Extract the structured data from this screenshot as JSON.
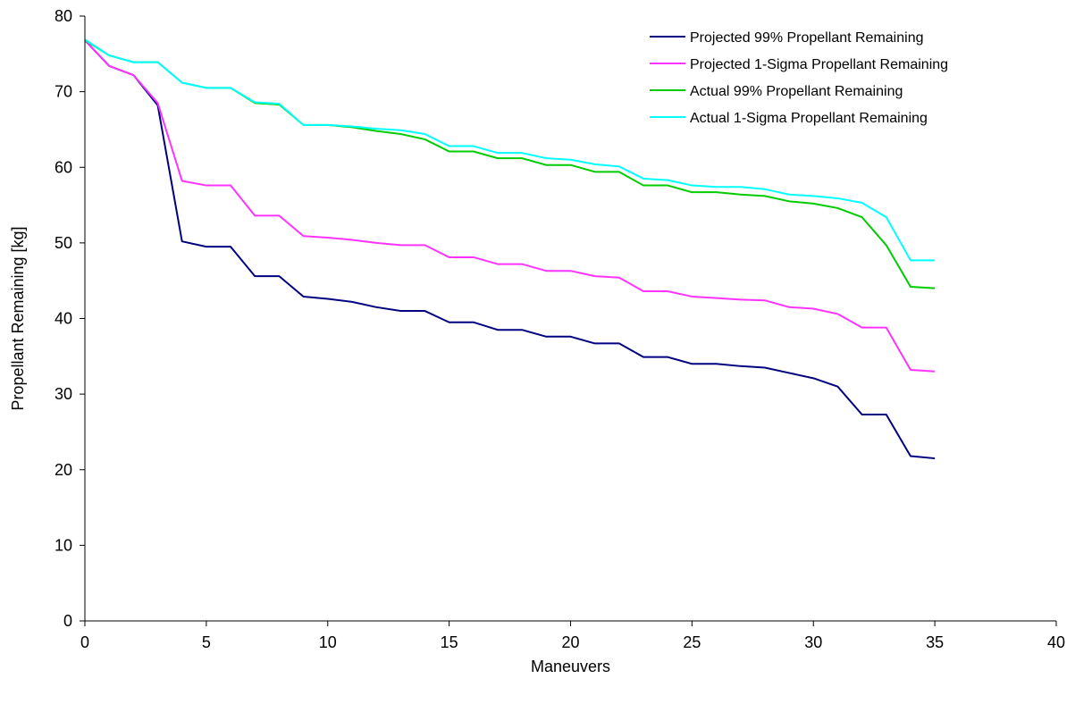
{
  "chart_data": {
    "type": "line",
    "title": "",
    "xlabel": "Maneuvers",
    "ylabel": "Propellant Remaining [kg]",
    "xlim": [
      0,
      40
    ],
    "ylim": [
      0,
      80
    ],
    "x_ticks": [
      0,
      5,
      10,
      15,
      20,
      25,
      30,
      35,
      40
    ],
    "y_ticks": [
      0,
      10,
      20,
      30,
      40,
      50,
      60,
      70,
      80
    ],
    "grid": false,
    "legend_position": "top-right",
    "x": [
      0,
      1,
      2,
      3,
      4,
      5,
      6,
      7,
      8,
      9,
      10,
      11,
      12,
      13,
      14,
      15,
      16,
      17,
      18,
      19,
      20,
      21,
      22,
      23,
      24,
      25,
      26,
      27,
      28,
      29,
      30,
      31,
      32,
      33,
      34,
      35
    ],
    "series": [
      {
        "name": "Projected 99% Propellant Remaining",
        "color": "#000080",
        "values": [
          76.8,
          73.4,
          72.2,
          68.2,
          50.2,
          49.5,
          49.5,
          45.6,
          45.6,
          42.9,
          42.6,
          42.2,
          41.5,
          41.0,
          41.0,
          39.5,
          39.5,
          38.5,
          38.5,
          37.6,
          37.6,
          36.7,
          36.7,
          34.9,
          34.9,
          34.0,
          34.0,
          33.7,
          33.5,
          32.8,
          32.1,
          31.0,
          27.3,
          27.3,
          21.8,
          21.5
        ]
      },
      {
        "name": "Projected 1-Sigma Propellant Remaining",
        "color": "#FF33FF",
        "values": [
          76.8,
          73.4,
          72.2,
          68.5,
          58.2,
          57.6,
          57.6,
          53.6,
          53.6,
          50.9,
          50.7,
          50.4,
          50.0,
          49.7,
          49.7,
          48.1,
          48.1,
          47.2,
          47.2,
          46.3,
          46.3,
          45.6,
          45.4,
          43.6,
          43.6,
          42.9,
          42.7,
          42.5,
          42.4,
          41.5,
          41.3,
          40.6,
          38.8,
          38.8,
          33.2,
          33.0
        ]
      },
      {
        "name": "Actual 99% Propellant Remaining",
        "color": "#00CC00",
        "values": [
          76.8,
          74.8,
          73.9,
          73.9,
          71.2,
          70.5,
          70.5,
          68.5,
          68.3,
          65.6,
          65.6,
          65.3,
          64.8,
          64.4,
          63.7,
          62.1,
          62.1,
          61.2,
          61.2,
          60.3,
          60.3,
          59.4,
          59.4,
          57.6,
          57.6,
          56.7,
          56.7,
          56.4,
          56.2,
          55.5,
          55.2,
          54.6,
          53.4,
          49.7,
          44.2,
          44.0
        ]
      },
      {
        "name": "Actual 1-Sigma Propellant Remaining",
        "color": "#00FFFF",
        "values": [
          76.9,
          74.8,
          73.9,
          73.9,
          71.2,
          70.5,
          70.5,
          68.6,
          68.4,
          65.6,
          65.6,
          65.4,
          65.1,
          64.9,
          64.4,
          62.8,
          62.8,
          61.9,
          61.9,
          61.2,
          61.0,
          60.4,
          60.1,
          58.5,
          58.3,
          57.6,
          57.4,
          57.4,
          57.1,
          56.4,
          56.2,
          55.9,
          55.3,
          53.4,
          47.7,
          47.7
        ]
      }
    ]
  }
}
